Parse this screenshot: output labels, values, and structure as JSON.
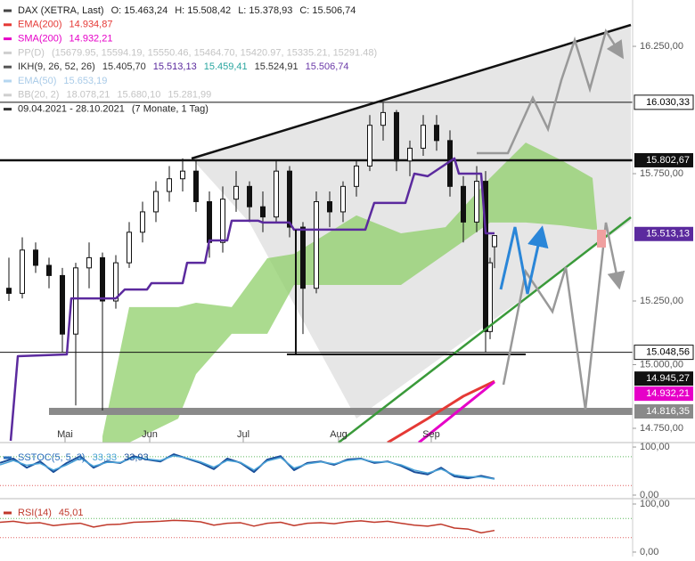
{
  "chart_data": [
    {
      "type": "candlestick",
      "legend": [
        {
          "icon": "#444",
          "parts": [
            {
              "text": "DAX (XETRA, Last)",
              "color": "#222"
            },
            {
              "text": "O: 15.463,24",
              "color": "#222"
            },
            {
              "text": "H: 15.508,42",
              "color": "#222"
            },
            {
              "text": "L: 15.378,93",
              "color": "#222"
            },
            {
              "text": "C: 15.506,74",
              "color": "#222"
            }
          ]
        },
        {
          "icon": "#e53935",
          "parts": [
            {
              "text": "EMA(200)",
              "color": "#e53935"
            },
            {
              "text": "14.934,87",
              "color": "#e53935"
            }
          ]
        },
        {
          "icon": "#e600c8",
          "parts": [
            {
              "text": "SMA(200)",
              "color": "#e600c8"
            },
            {
              "text": "14.932,21",
              "color": "#e600c8"
            }
          ]
        },
        {
          "icon": "#cfcfcf",
          "parts": [
            {
              "text": "PP(D)",
              "color": "#c4c4c4"
            },
            {
              "text": "(15679.95, 15594.19, 15550.46, 15464.70, 15420.97, 15335.21, 15291.48)",
              "color": "#c4c4c4"
            }
          ]
        },
        {
          "icon": "#555",
          "parts": [
            {
              "text": "IKH(9, 26, 52, 26)",
              "color": "#333"
            },
            {
              "text": "15.405,70",
              "color": "#333"
            },
            {
              "text": "15.513,13",
              "color": "#5b2a9e"
            },
            {
              "text": "15.459,41",
              "color": "#2aa6a0"
            },
            {
              "text": "15.524,91",
              "color": "#333"
            },
            {
              "text": "15.506,74",
              "color": "#6b3aa8"
            }
          ]
        },
        {
          "icon": "#b5d6f0",
          "parts": [
            {
              "text": "EMA(50)",
              "color": "#a9cbe8"
            },
            {
              "text": "15.653,19",
              "color": "#a9cbe8"
            }
          ]
        },
        {
          "icon": "#cfcfcf",
          "parts": [
            {
              "text": "BB(20, 2)",
              "color": "#c4c4c4"
            },
            {
              "text": "18.078,21",
              "color": "#c4c4c4"
            },
            {
              "text": "15.680,10",
              "color": "#c4c4c4"
            },
            {
              "text": "15.281,99",
              "color": "#c4c4c4"
            }
          ]
        },
        {
          "icon": "#333",
          "parts": [
            {
              "text": "09.04.2021 - 28.10.2021",
              "color": "#222"
            },
            {
              "text": "(7 Monate, 1 Tag)",
              "color": "#222"
            }
          ]
        }
      ],
      "x": [
        2,
        5,
        8,
        11,
        14,
        17,
        20,
        23,
        26,
        29,
        32,
        35,
        38,
        41,
        44,
        47,
        50,
        53,
        56,
        59,
        62,
        65,
        68,
        71,
        74,
        77,
        80,
        83,
        86,
        89,
        92,
        95,
        98,
        101,
        104,
        107,
        109,
        110,
        111
      ],
      "open": [
        15300,
        15280,
        15450,
        15390,
        15350,
        15120,
        15380,
        15420,
        15250,
        15400,
        15520,
        15600,
        15680,
        15730,
        15760,
        15640,
        15480,
        15650,
        15700,
        15620,
        15580,
        15760,
        15540,
        15300,
        15640,
        15600,
        15700,
        15780,
        15940,
        15990,
        15800,
        15850,
        15940,
        15880,
        15700,
        15560,
        15720,
        15130,
        15463.24
      ],
      "high": [
        15420,
        15500,
        15480,
        15420,
        15380,
        15400,
        15480,
        15440,
        15430,
        15560,
        15640,
        15720,
        15780,
        15810,
        15800,
        15680,
        15700,
        15760,
        15720,
        15680,
        15800,
        15780,
        15560,
        15680,
        15680,
        15720,
        15800,
        15980,
        16030,
        16000,
        15880,
        15980,
        15980,
        15920,
        15740,
        15780,
        15760,
        15420,
        15508.42
      ],
      "low": [
        15250,
        15260,
        15360,
        15300,
        15050,
        14840,
        15300,
        14820,
        15220,
        15380,
        15480,
        15560,
        15640,
        15680,
        15600,
        15420,
        15440,
        15600,
        15560,
        15520,
        15560,
        15500,
        15120,
        15280,
        15540,
        15560,
        15660,
        15760,
        15880,
        15760,
        15740,
        15820,
        15840,
        15660,
        15480,
        15520,
        15048.56,
        15100,
        15378.93
      ],
      "close": [
        15280,
        15450,
        15390,
        15350,
        15120,
        15380,
        15420,
        15250,
        15400,
        15520,
        15600,
        15680,
        15730,
        15760,
        15640,
        15480,
        15650,
        15700,
        15620,
        15580,
        15760,
        15540,
        15300,
        15640,
        15600,
        15700,
        15780,
        15940,
        15990,
        15800,
        15850,
        15940,
        15880,
        15700,
        15560,
        15720,
        15130,
        15400,
        15506.74
      ],
      "up_color": "#ffffff",
      "down_color": "#111111",
      "xlim": [
        0,
        142
      ],
      "xticks": [
        {
          "value": 14.6,
          "label": "Mai"
        },
        {
          "value": 33.6,
          "label": "Jun"
        },
        {
          "value": 54.6,
          "label": "Jul"
        },
        {
          "value": 76,
          "label": "Aug"
        },
        {
          "value": 96.8,
          "label": "Sep"
        }
      ],
      "ylim": [
        14694,
        16432
      ],
      "yticks": [
        {
          "value": 16250,
          "label": "16.250,00"
        },
        {
          "value": 15750,
          "label": "15.750,00"
        },
        {
          "value": 15250,
          "label": "15.250,00"
        },
        {
          "value": 15000,
          "label": "15.000,00"
        },
        {
          "value": 14750,
          "label": "14.750,00"
        }
      ],
      "cloud": {
        "color": "#8fcf6a",
        "x": [
          23,
          29,
          40,
          44,
          52,
          60,
          66,
          80,
          90,
          100,
          110,
          118,
          126,
          133,
          134
        ],
        "upper": [
          14719,
          15226,
          15226,
          15243,
          15226,
          15418,
          15435,
          15586,
          15516,
          15540,
          15733,
          15872,
          15803,
          15733,
          15540
        ],
        "lower": [
          14694,
          14694,
          14788,
          14963,
          15121,
          15121,
          15313,
          15313,
          15313,
          15435,
          15558,
          15558,
          15547,
          15530,
          15530
        ]
      },
      "series": [
        {
          "color": "#5b2a9e",
          "width": 2.5,
          "x": [
            2.4,
            4,
            15,
            16,
            26,
            28,
            33,
            34,
            41,
            42,
            46,
            47,
            51,
            52,
            58,
            59,
            65,
            66,
            82,
            84,
            91,
            93,
            96,
            102,
            103,
            108,
            109,
            111
          ],
          "values": [
            14701,
            15033,
            15040,
            15260,
            15260,
            15295,
            15295,
            15320,
            15320,
            15400,
            15400,
            15488,
            15488,
            15565,
            15565,
            15558,
            15558,
            15530,
            15530,
            15635,
            15635,
            15750,
            15740,
            15810,
            15750,
            15750,
            15516,
            15516
          ]
        },
        {
          "color": "#e53935",
          "width": 3,
          "x": [
            87,
            96,
            104,
            111
          ],
          "values": [
            14694,
            14788,
            14876,
            14934.87
          ]
        },
        {
          "color": "#e600c8",
          "width": 3,
          "x": [
            94,
            102,
            111
          ],
          "values": [
            14694,
            14806,
            14932.21
          ]
        }
      ],
      "price_levels": [
        {
          "value": 16030.33,
          "label": "16.030,33",
          "bg": "#ffffff",
          "fg": "#000",
          "line": 1
        },
        {
          "value": 15802.67,
          "label": "15.802,67",
          "bg": "#111111",
          "fg": "#fff",
          "line": 2.5
        },
        {
          "value": 15513.13,
          "label": "15.513,13",
          "bg": "#5b2a9e",
          "fg": "#fff",
          "line": 0
        },
        {
          "value": 15048.56,
          "label": "15.048,56",
          "bg": "#ffffff",
          "fg": "#000",
          "line": 1
        },
        {
          "value": 14932.21,
          "label": "14.932,21",
          "bg": "#e600c8",
          "fg": "#fff",
          "line": 0
        },
        {
          "value": 14945.27,
          "label": "14.945,27",
          "bg": "#111111",
          "fg": "#fff",
          "line": 0
        },
        {
          "value": 14816.35,
          "label": "14.816,35",
          "bg": "#8a8a8a",
          "fg": "#fff",
          "line": 8
        }
      ]
    },
    {
      "type": "line",
      "legend": [
        {
          "icon": "#2a6ebb",
          "parts": [
            {
              "text": "SSTOC(5, 5, 3)",
              "color": "#2a6ebb"
            },
            {
              "text": "33,33",
              "color": "#4aa3d8"
            },
            {
              "text": "33,93",
              "color": "#1a4f9a"
            }
          ]
        }
      ],
      "x": [
        0,
        3,
        6,
        9,
        12,
        15,
        18,
        21,
        24,
        27,
        30,
        33,
        36,
        39,
        42,
        45,
        48,
        51,
        54,
        57,
        60,
        63,
        66,
        69,
        72,
        75,
        78,
        81,
        84,
        87,
        90,
        93,
        96,
        99,
        102,
        105,
        108,
        111
      ],
      "series": [
        {
          "color": "#1a4f9a",
          "width": 2,
          "values": [
            67,
            76,
            57,
            70,
            48,
            67,
            81,
            57,
            70,
            67,
            81,
            74,
            70,
            85,
            76,
            67,
            54,
            76,
            67,
            48,
            74,
            81,
            52,
            67,
            70,
            63,
            74,
            76,
            67,
            70,
            61,
            48,
            43,
            57,
            39,
            35,
            40,
            33.93
          ]
        },
        {
          "color": "#4aa3d8",
          "width": 1.5,
          "values": [
            63,
            72,
            62,
            66,
            52,
            63,
            77,
            60,
            68,
            68,
            78,
            75,
            72,
            82,
            77,
            69,
            58,
            72,
            68,
            52,
            71,
            78,
            56,
            65,
            69,
            65,
            72,
            75,
            69,
            69,
            63,
            52,
            46,
            54,
            42,
            38,
            38,
            33.33
          ]
        }
      ],
      "xlim": [
        0,
        142
      ],
      "ylim": [
        -7.4,
        109.3
      ],
      "yticks": [
        {
          "value": 100,
          "label": "100,00"
        },
        {
          "value": 0,
          "label": "0,00"
        }
      ],
      "levels": [
        {
          "value": 80,
          "color": "#5cb85c"
        },
        {
          "value": 20,
          "color": "#e06060"
        }
      ]
    },
    {
      "type": "line",
      "legend": [
        {
          "icon": "#c0392b",
          "parts": [
            {
              "text": "RSI(14)",
              "color": "#c0392b"
            },
            {
              "text": "45,01",
              "color": "#c0392b"
            }
          ]
        }
      ],
      "x": [
        0,
        3,
        6,
        9,
        12,
        15,
        18,
        21,
        24,
        27,
        30,
        33,
        36,
        39,
        42,
        45,
        48,
        51,
        54,
        57,
        60,
        63,
        66,
        69,
        72,
        75,
        78,
        81,
        84,
        87,
        90,
        93,
        96,
        99,
        102,
        105,
        108,
        111
      ],
      "series": [
        {
          "color": "#c0392b",
          "width": 1.5,
          "values": [
            62,
            64,
            60,
            61,
            55,
            58,
            60,
            52,
            57,
            58,
            62,
            63,
            64,
            66,
            65,
            63,
            56,
            60,
            61,
            54,
            60,
            62,
            55,
            60,
            61,
            59,
            63,
            65,
            62,
            64,
            60,
            56,
            54,
            58,
            50,
            48,
            40,
            45.01
          ]
        }
      ],
      "xlim": [
        0,
        142
      ],
      "ylim": [
        -9.3,
        111.1
      ],
      "yticks": [
        {
          "value": 100,
          "label": "100,00"
        },
        {
          "value": 0,
          "label": "0,00"
        }
      ],
      "levels": [
        {
          "value": 70,
          "color": "#5cb85c"
        },
        {
          "value": 30,
          "color": "#e06060"
        }
      ]
    }
  ]
}
